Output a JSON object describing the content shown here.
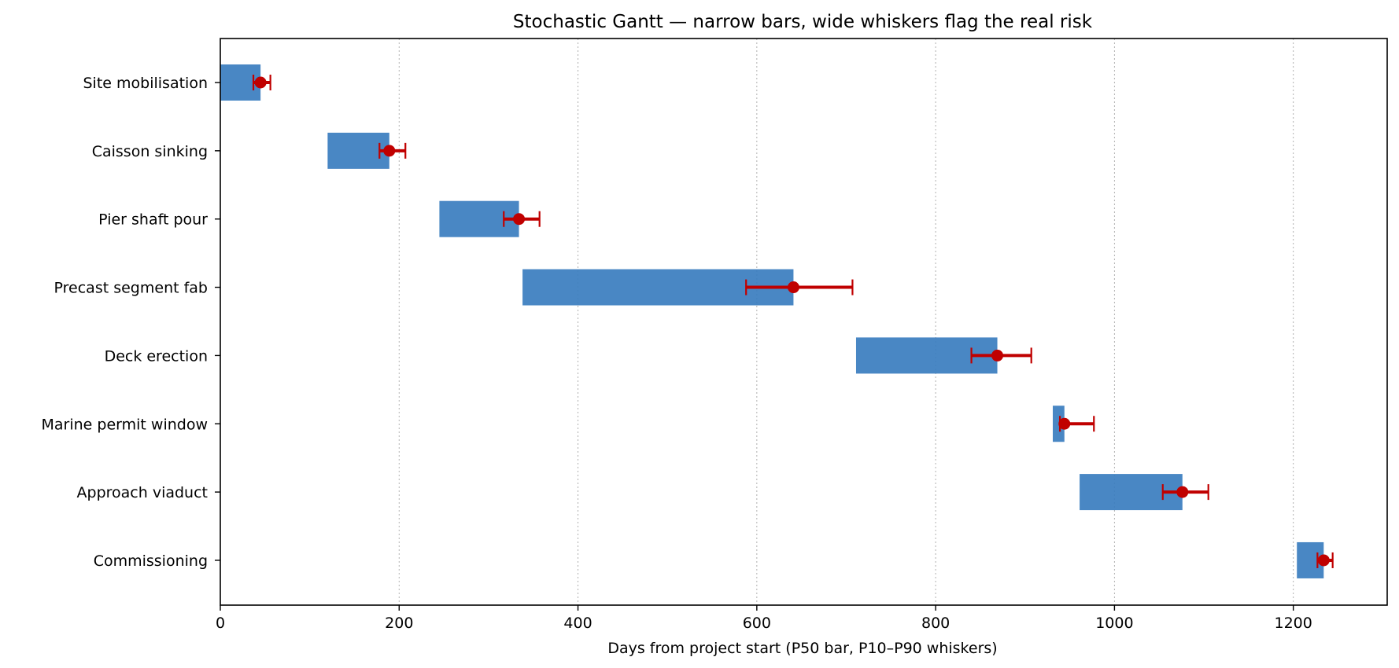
{
  "chart_data": {
    "type": "bar",
    "title": "Stochastic Gantt — narrow bars, wide whiskers flag the real risk",
    "xlabel": "Days from project start (P50 bar, P10–P90 whiskers)",
    "ylabel": "",
    "xlim": [
      0,
      1305
    ],
    "x_ticks": [
      0,
      200,
      400,
      600,
      800,
      1000,
      1200
    ],
    "grid": "x dotted",
    "orientation": "horizontal",
    "colors": {
      "bar": "#3a7dbf",
      "whisker": "#c00000",
      "grid": "#b0b0b0"
    },
    "tasks": [
      {
        "name": "Site mobilisation",
        "start": 0,
        "p50_end": 45,
        "p10": 37,
        "p90": 56
      },
      {
        "name": "Caisson sinking",
        "start": 120,
        "p50_end": 189,
        "p10": 178,
        "p90": 207
      },
      {
        "name": "Pier shaft pour",
        "start": 245,
        "p50_end": 334,
        "p10": 317,
        "p90": 357
      },
      {
        "name": "Precast segment fab",
        "start": 338,
        "p50_end": 641,
        "p10": 588,
        "p90": 707
      },
      {
        "name": "Deck erection",
        "start": 711,
        "p50_end": 869,
        "p10": 840,
        "p90": 907
      },
      {
        "name": "Marine permit window",
        "start": 931,
        "p50_end": 944,
        "p10": 939,
        "p90": 977
      },
      {
        "name": "Approach viaduct",
        "start": 961,
        "p50_end": 1076,
        "p10": 1054,
        "p90": 1105
      },
      {
        "name": "Commissioning",
        "start": 1204,
        "p50_end": 1234,
        "p10": 1227,
        "p90": 1244
      }
    ]
  }
}
